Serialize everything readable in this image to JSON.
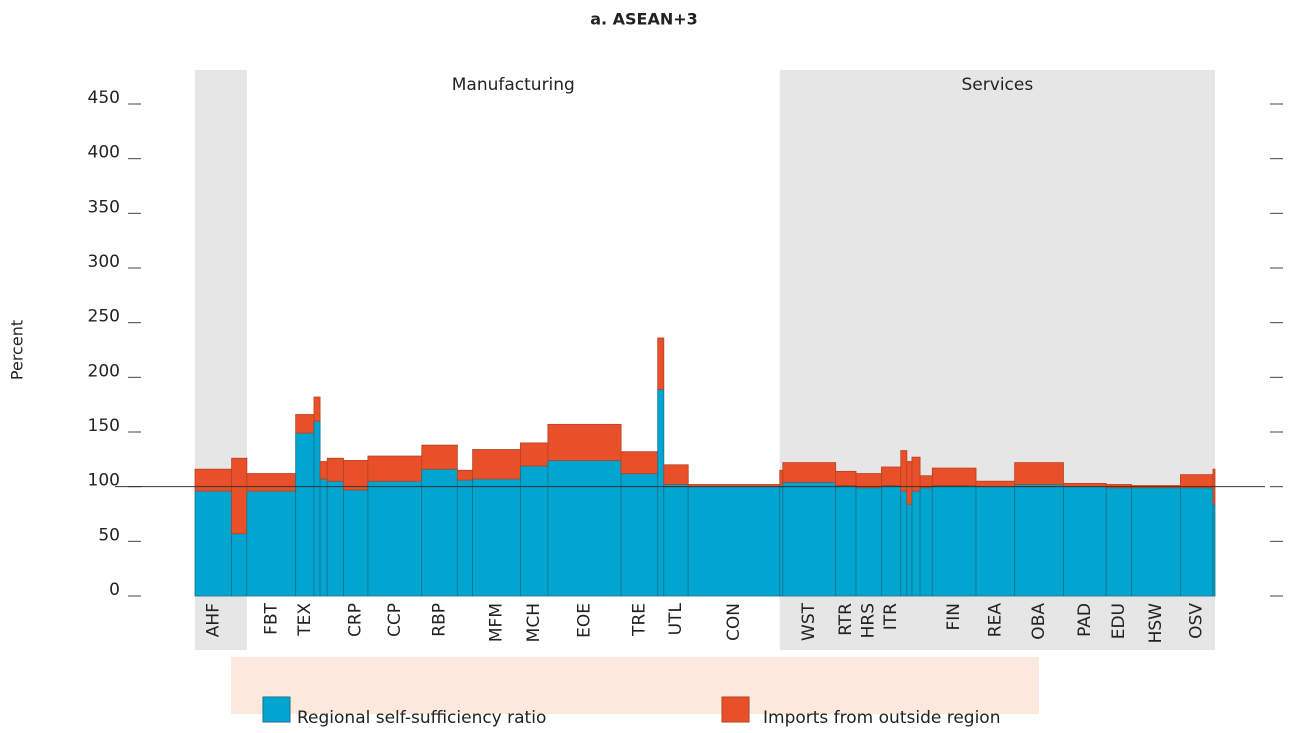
{
  "chart_data": {
    "type": "variwide-stacked-bar",
    "title": "a. ASEAN+3",
    "y_label": "Percent",
    "sector_labels": [
      "Manufacturing",
      "Services"
    ],
    "categories": [
      "AHF",
      null,
      "FBT",
      "TEX",
      null,
      null,
      null,
      "CRP",
      "CCP",
      "RBP",
      null,
      "MFM",
      "MCH",
      "EOE",
      "TRE",
      null,
      "UTL",
      "CON",
      null,
      "WST",
      "RTR",
      "HRS",
      "ITR",
      null,
      null,
      null,
      null,
      "FIN",
      "REA",
      "OBA",
      "PAD",
      "EDU",
      "HSW",
      "OSV",
      null
    ],
    "widths": [
      3.6,
      1.5,
      4.8,
      1.8,
      0.6,
      0.7,
      1.6,
      2.4,
      5.3,
      3.5,
      1.5,
      4.7,
      2.7,
      7.2,
      3.6,
      0.6,
      2.4,
      9.0,
      0.3,
      5.2,
      2.0,
      2.5,
      1.9,
      0.6,
      0.5,
      0.8,
      1.2,
      4.3,
      3.8,
      4.8,
      4.2,
      2.5,
      4.8,
      3.2,
      0.2
    ],
    "series": [
      {
        "name": "Regional self-sufficiency ratio",
        "color": "#00a5d0",
        "values": [
          96,
          57,
          96,
          149,
          160,
          107,
          105,
          97,
          105,
          116,
          106,
          107,
          119,
          124,
          112,
          189,
          102,
          100,
          100,
          104,
          101,
          99,
          101,
          96,
          84,
          96,
          99,
          101,
          100,
          102,
          100,
          99,
          99,
          99,
          84
        ]
      },
      {
        "name": "Imports from outside region",
        "color": "#e8502a",
        "values": [
          20,
          69,
          16,
          17,
          22,
          16,
          21,
          27,
          23,
          22,
          9,
          27,
          21,
          33,
          20,
          47,
          18,
          2,
          15,
          18,
          13,
          13,
          17,
          37,
          39,
          31,
          11,
          16,
          5,
          20,
          3,
          3,
          2,
          12,
          32
        ]
      }
    ],
    "reference_line": 100,
    "ylim": [
      0,
      450
    ],
    "yticks": [
      0,
      50,
      100,
      150,
      200,
      250,
      300,
      350,
      400,
      450
    ]
  }
}
